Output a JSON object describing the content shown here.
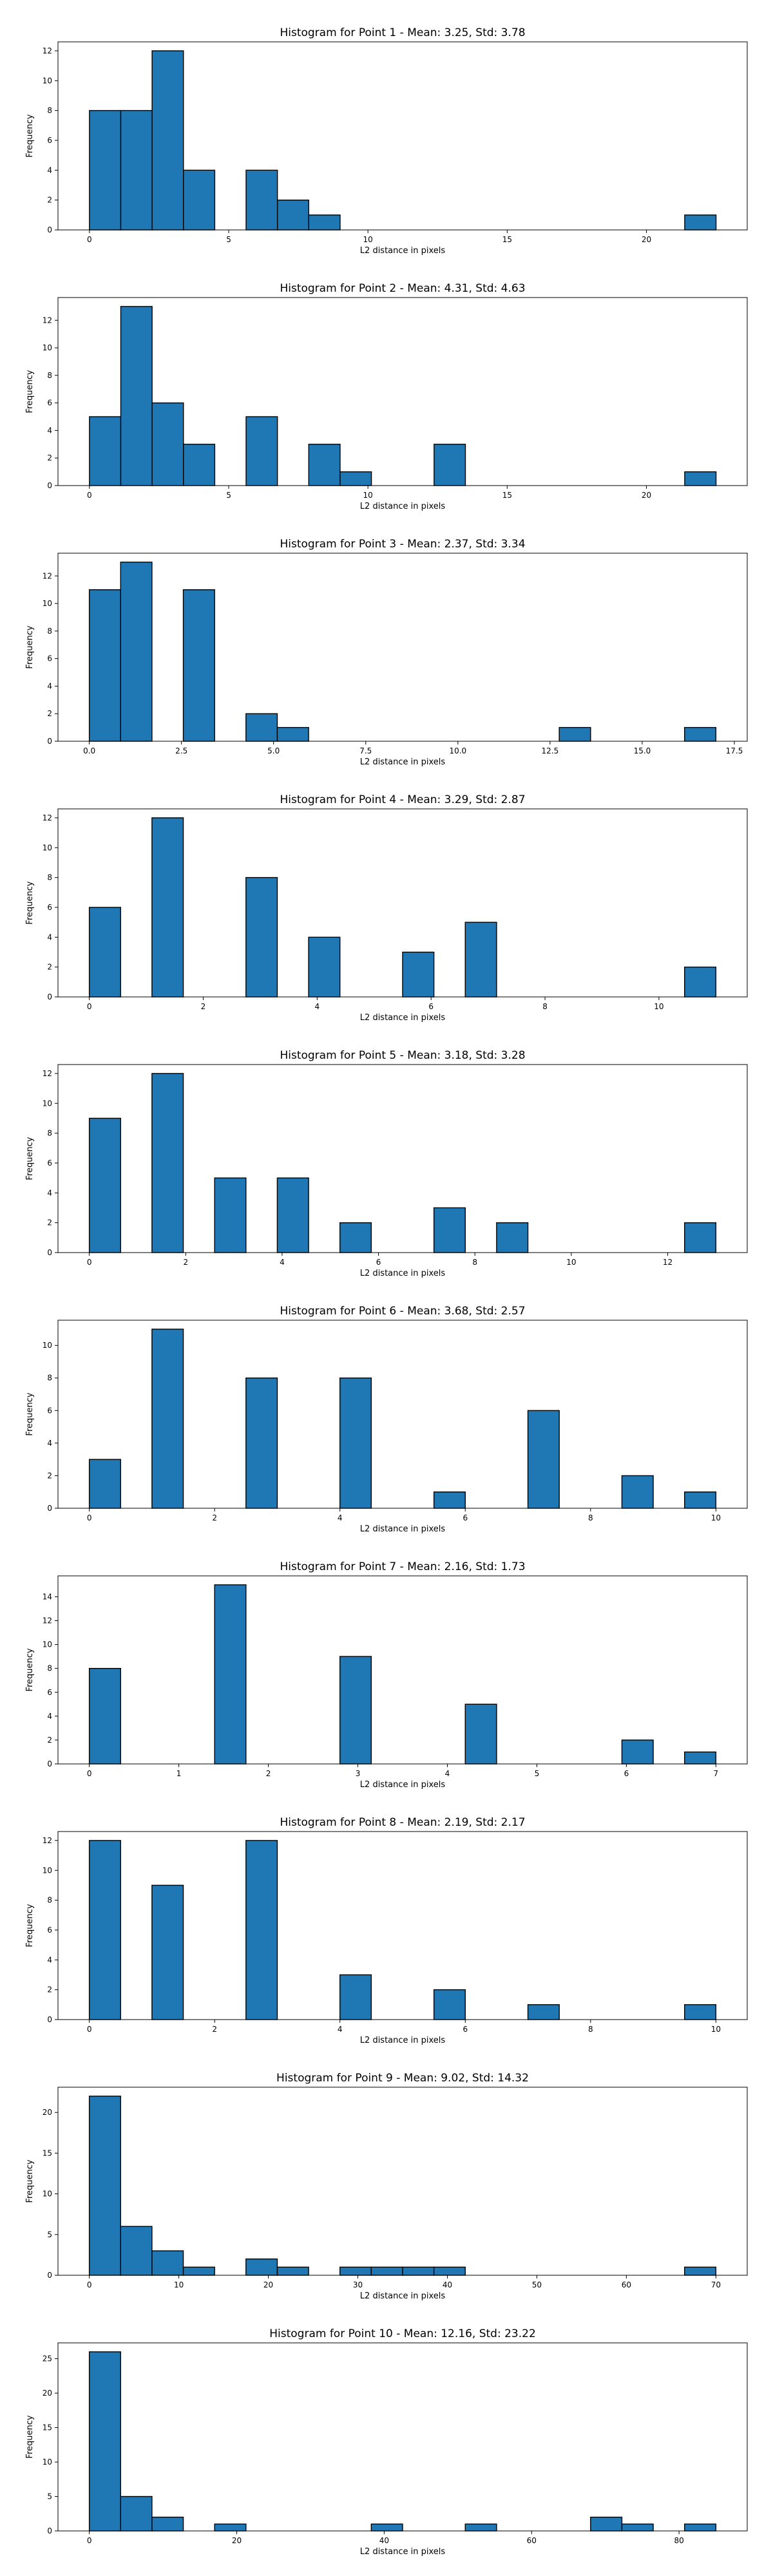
{
  "colors": {
    "bar_fill": "#1f77b4",
    "bar_edge": "#000000",
    "axes": "#000000",
    "background": "#ffffff"
  },
  "chart_data": [
    {
      "type": "bar",
      "subtype": "histogram",
      "title": "Histogram for Point 1 - Mean: 3.25, Std: 3.78",
      "xlabel": "L2 distance in pixels",
      "ylabel": "Frequency",
      "xlim": [
        -1.13,
        23.62
      ],
      "ylim": [
        0,
        12.6
      ],
      "xticks": [
        0,
        5,
        10,
        15,
        20
      ],
      "xtick_labels": [
        "0",
        "5",
        "10",
        "15",
        "20"
      ],
      "yticks": [
        0,
        2,
        4,
        6,
        8,
        10,
        12
      ],
      "ytick_labels": [
        "0",
        "2",
        "4",
        "6",
        "8",
        "10",
        "12"
      ],
      "grid": false,
      "bin_edges": [
        0,
        1.125,
        2.25,
        3.375,
        4.5,
        5.625,
        6.75,
        7.875,
        9,
        10.125,
        11.25,
        12.375,
        13.5,
        14.625,
        15.75,
        16.875,
        18,
        19.125,
        20.25,
        21.375,
        22.5
      ],
      "counts": [
        8,
        8,
        12,
        4,
        0,
        4,
        2,
        1,
        0,
        0,
        0,
        0,
        0,
        0,
        0,
        0,
        0,
        0,
        0,
        1
      ]
    },
    {
      "type": "bar",
      "subtype": "histogram",
      "title": "Histogram for Point 2 - Mean: 4.31, Std: 4.63",
      "xlabel": "L2 distance in pixels",
      "ylabel": "Frequency",
      "xlim": [
        -1.13,
        23.62
      ],
      "ylim": [
        0,
        13.65
      ],
      "xticks": [
        0,
        5,
        10,
        15,
        20
      ],
      "xtick_labels": [
        "0",
        "5",
        "10",
        "15",
        "20"
      ],
      "yticks": [
        0,
        2,
        4,
        6,
        8,
        10,
        12
      ],
      "ytick_labels": [
        "0",
        "2",
        "4",
        "6",
        "8",
        "10",
        "12"
      ],
      "grid": false,
      "bin_edges": [
        0,
        1.125,
        2.25,
        3.375,
        4.5,
        5.625,
        6.75,
        7.875,
        9,
        10.125,
        11.25,
        12.375,
        13.5,
        14.625,
        15.75,
        16.875,
        18,
        19.125,
        20.25,
        21.375,
        22.5
      ],
      "counts": [
        5,
        13,
        6,
        3,
        0,
        5,
        0,
        3,
        1,
        0,
        0,
        3,
        0,
        0,
        0,
        0,
        0,
        0,
        0,
        1
      ]
    },
    {
      "type": "bar",
      "subtype": "histogram",
      "title": "Histogram for Point 3 - Mean: 2.37, Std: 3.34",
      "xlabel": "L2 distance in pixels",
      "ylabel": "Frequency",
      "xlim": [
        -0.85,
        17.85
      ],
      "ylim": [
        0,
        13.65
      ],
      "xticks": [
        0,
        2.5,
        5,
        7.5,
        10,
        12.5,
        15,
        17.5
      ],
      "xtick_labels": [
        "0.0",
        "2.5",
        "5.0",
        "7.5",
        "10.0",
        "12.5",
        "15.0",
        "17.5"
      ],
      "yticks": [
        0,
        2,
        4,
        6,
        8,
        10,
        12
      ],
      "ytick_labels": [
        "0",
        "2",
        "4",
        "6",
        "8",
        "10",
        "12"
      ],
      "grid": false,
      "bin_edges": [
        0,
        0.85,
        1.7,
        2.55,
        3.4,
        4.25,
        5.1,
        5.95,
        6.8,
        7.65,
        8.5,
        9.35,
        10.2,
        11.05,
        11.9,
        12.75,
        13.6,
        14.45,
        15.3,
        16.15,
        17
      ],
      "counts": [
        11,
        13,
        0,
        11,
        0,
        2,
        1,
        0,
        0,
        0,
        0,
        0,
        0,
        0,
        0,
        1,
        0,
        0,
        0,
        1
      ]
    },
    {
      "type": "bar",
      "subtype": "histogram",
      "title": "Histogram for Point 4 - Mean: 3.29, Std: 2.87",
      "xlabel": "L2 distance in pixels",
      "ylabel": "Frequency",
      "xlim": [
        -0.55,
        11.55
      ],
      "ylim": [
        0,
        12.6
      ],
      "xticks": [
        0,
        2,
        4,
        6,
        8,
        10
      ],
      "xtick_labels": [
        "0",
        "2",
        "4",
        "6",
        "8",
        "10"
      ],
      "yticks": [
        0,
        2,
        4,
        6,
        8,
        10,
        12
      ],
      "ytick_labels": [
        "0",
        "2",
        "4",
        "6",
        "8",
        "10",
        "12"
      ],
      "grid": false,
      "bin_edges": [
        0,
        0.55,
        1.1,
        1.65,
        2.2,
        2.75,
        3.3,
        3.85,
        4.4,
        4.95,
        5.5,
        6.05,
        6.6,
        7.15,
        7.7,
        8.25,
        8.8,
        9.35,
        9.9,
        10.45,
        11
      ],
      "counts": [
        6,
        0,
        12,
        0,
        0,
        8,
        0,
        4,
        0,
        0,
        3,
        0,
        5,
        0,
        0,
        0,
        0,
        0,
        0,
        2
      ]
    },
    {
      "type": "bar",
      "subtype": "histogram",
      "title": "Histogram for Point 5 - Mean: 3.18, Std: 3.28",
      "xlabel": "L2 distance in pixels",
      "ylabel": "Frequency",
      "xlim": [
        -0.65,
        13.65
      ],
      "ylim": [
        0,
        12.6
      ],
      "xticks": [
        0,
        2,
        4,
        6,
        8,
        10,
        12
      ],
      "xtick_labels": [
        "0",
        "2",
        "4",
        "6",
        "8",
        "10",
        "12"
      ],
      "yticks": [
        0,
        2,
        4,
        6,
        8,
        10,
        12
      ],
      "ytick_labels": [
        "0",
        "2",
        "4",
        "6",
        "8",
        "10",
        "12"
      ],
      "grid": false,
      "bin_edges": [
        0,
        0.65,
        1.3,
        1.95,
        2.6,
        3.25,
        3.9,
        4.55,
        5.2,
        5.85,
        6.5,
        7.15,
        7.8,
        8.45,
        9.1,
        9.75,
        10.4,
        11.05,
        11.7,
        12.35,
        13
      ],
      "counts": [
        9,
        0,
        12,
        0,
        5,
        0,
        5,
        0,
        2,
        0,
        0,
        3,
        0,
        2,
        0,
        0,
        0,
        0,
        0,
        2
      ]
    },
    {
      "type": "bar",
      "subtype": "histogram",
      "title": "Histogram for Point 6 - Mean: 3.68, Std: 2.57",
      "xlabel": "L2 distance in pixels",
      "ylabel": "Frequency",
      "xlim": [
        -0.5,
        10.5
      ],
      "ylim": [
        0,
        11.55
      ],
      "xticks": [
        0,
        2,
        4,
        6,
        8,
        10
      ],
      "xtick_labels": [
        "0",
        "2",
        "4",
        "6",
        "8",
        "10"
      ],
      "yticks": [
        0,
        2,
        4,
        6,
        8,
        10
      ],
      "ytick_labels": [
        "0",
        "2",
        "4",
        "6",
        "8",
        "10"
      ],
      "grid": false,
      "bin_edges": [
        0,
        0.5,
        1,
        1.5,
        2,
        2.5,
        3,
        3.5,
        4,
        4.5,
        5,
        5.5,
        6,
        6.5,
        7,
        7.5,
        8,
        8.5,
        9,
        9.5,
        10
      ],
      "counts": [
        3,
        0,
        11,
        0,
        0,
        8,
        0,
        0,
        8,
        0,
        0,
        1,
        0,
        0,
        6,
        0,
        0,
        2,
        0,
        1
      ]
    },
    {
      "type": "bar",
      "subtype": "histogram",
      "title": "Histogram for Point 7 - Mean: 2.16, Std: 1.73",
      "xlabel": "L2 distance in pixels",
      "ylabel": "Frequency",
      "xlim": [
        -0.35,
        7.35
      ],
      "ylim": [
        0,
        15.75
      ],
      "xticks": [
        0,
        1,
        2,
        3,
        4,
        5,
        6,
        7
      ],
      "xtick_labels": [
        "0",
        "1",
        "2",
        "3",
        "4",
        "5",
        "6",
        "7"
      ],
      "yticks": [
        0,
        2,
        4,
        6,
        8,
        10,
        12,
        14
      ],
      "ytick_labels": [
        "0",
        "2",
        "4",
        "6",
        "8",
        "10",
        "12",
        "14"
      ],
      "grid": false,
      "bin_edges": [
        0,
        0.35,
        0.7,
        1.05,
        1.4,
        1.75,
        2.1,
        2.45,
        2.8,
        3.15,
        3.5,
        3.85,
        4.2,
        4.55,
        4.9,
        5.25,
        5.6,
        5.95,
        6.3,
        6.65,
        7
      ],
      "counts": [
        8,
        0,
        0,
        0,
        15,
        0,
        0,
        0,
        9,
        0,
        0,
        0,
        5,
        0,
        0,
        0,
        0,
        2,
        0,
        1
      ]
    },
    {
      "type": "bar",
      "subtype": "histogram",
      "title": "Histogram for Point 8 - Mean: 2.19, Std: 2.17",
      "xlabel": "L2 distance in pixels",
      "ylabel": "Frequency",
      "xlim": [
        -0.5,
        10.5
      ],
      "ylim": [
        0,
        12.6
      ],
      "xticks": [
        0,
        2,
        4,
        6,
        8,
        10
      ],
      "xtick_labels": [
        "0",
        "2",
        "4",
        "6",
        "8",
        "10"
      ],
      "yticks": [
        0,
        2,
        4,
        6,
        8,
        10,
        12
      ],
      "ytick_labels": [
        "0",
        "2",
        "4",
        "6",
        "8",
        "10",
        "12"
      ],
      "grid": false,
      "bin_edges": [
        0,
        0.5,
        1,
        1.5,
        2,
        2.5,
        3,
        3.5,
        4,
        4.5,
        5,
        5.5,
        6,
        6.5,
        7,
        7.5,
        8,
        8.5,
        9,
        9.5,
        10
      ],
      "counts": [
        12,
        0,
        9,
        0,
        0,
        12,
        0,
        0,
        3,
        0,
        0,
        2,
        0,
        0,
        1,
        0,
        0,
        0,
        0,
        1
      ]
    },
    {
      "type": "bar",
      "subtype": "histogram",
      "title": "Histogram for Point 9 - Mean: 9.02, Std: 14.32",
      "xlabel": "L2 distance in pixels",
      "ylabel": "Frequency",
      "xlim": [
        -3.5,
        73.5
      ],
      "ylim": [
        0,
        23.1
      ],
      "xticks": [
        0,
        10,
        20,
        30,
        40,
        50,
        60,
        70
      ],
      "xtick_labels": [
        "0",
        "10",
        "20",
        "30",
        "40",
        "50",
        "60",
        "70"
      ],
      "yticks": [
        0,
        5,
        10,
        15,
        20
      ],
      "ytick_labels": [
        "0",
        "5",
        "10",
        "15",
        "20"
      ],
      "grid": false,
      "bin_edges": [
        0,
        3.5,
        7,
        10.5,
        14,
        17.5,
        21,
        24.5,
        28,
        31.5,
        35,
        38.5,
        42,
        45.5,
        49,
        52.5,
        56,
        59.5,
        63,
        66.5,
        70
      ],
      "counts": [
        22,
        6,
        3,
        1,
        0,
        2,
        1,
        0,
        1,
        1,
        1,
        1,
        0,
        0,
        0,
        0,
        0,
        0,
        0,
        1
      ]
    },
    {
      "type": "bar",
      "subtype": "histogram",
      "title": "Histogram for Point 10 - Mean: 12.16, Std: 23.22",
      "xlabel": "L2 distance in pixels",
      "ylabel": "Frequency",
      "xlim": [
        -4.25,
        89.25
      ],
      "ylim": [
        0,
        27.3
      ],
      "xticks": [
        0,
        20,
        40,
        60,
        80
      ],
      "xtick_labels": [
        "0",
        "20",
        "40",
        "60",
        "80"
      ],
      "yticks": [
        0,
        5,
        10,
        15,
        20,
        25
      ],
      "ytick_labels": [
        "0",
        "5",
        "10",
        "15",
        "20",
        "25"
      ],
      "grid": false,
      "bin_edges": [
        0,
        4.25,
        8.5,
        12.75,
        17,
        21.25,
        25.5,
        29.75,
        34,
        38.25,
        42.5,
        46.75,
        51,
        55.25,
        59.5,
        63.75,
        68,
        72.25,
        76.5,
        80.75,
        85
      ],
      "counts": [
        26,
        5,
        2,
        0,
        1,
        0,
        0,
        0,
        0,
        1,
        0,
        0,
        1,
        0,
        0,
        0,
        2,
        1,
        0,
        1
      ]
    }
  ]
}
